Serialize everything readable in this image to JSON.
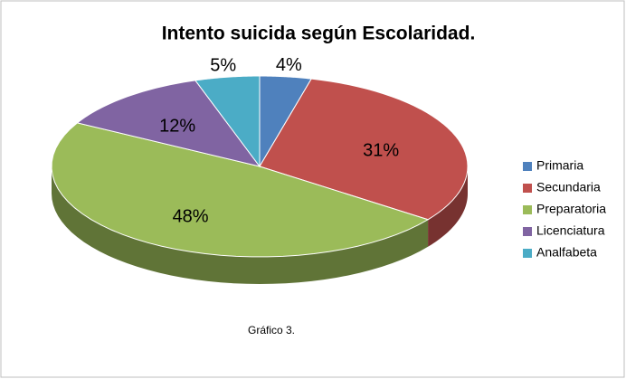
{
  "chart_data": {
    "type": "pie3d",
    "title": "Intento suicida según Escolaridad.",
    "categories": [
      "Primaria",
      "Secundaria",
      "Preparatoria",
      "Licenciatura",
      "Analfabeta"
    ],
    "values": [
      4,
      31,
      48,
      12,
      5
    ],
    "value_labels": [
      "4%",
      "31%",
      "48%",
      "12%",
      "5%"
    ],
    "colors": [
      "#4f81bd",
      "#c0504d",
      "#9bbb59",
      "#8064a2",
      "#4bacc6"
    ],
    "legend": "right",
    "annotation": "Gráfico 3."
  }
}
